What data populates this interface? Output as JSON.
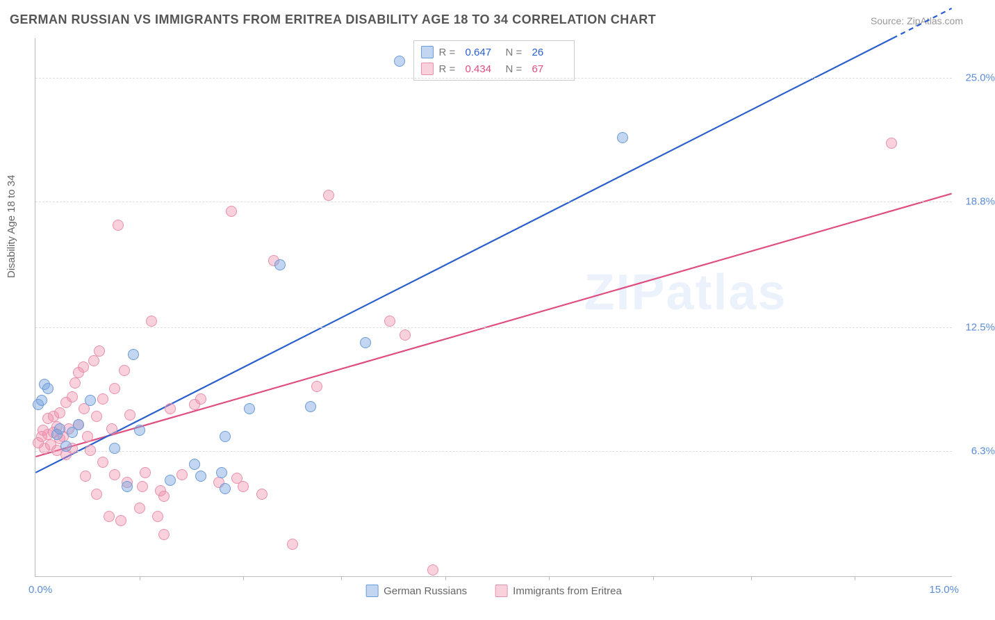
{
  "title": "GERMAN RUSSIAN VS IMMIGRANTS FROM ERITREA DISABILITY AGE 18 TO 34 CORRELATION CHART",
  "source": "Source: ZipAtlas.com",
  "ylabel": "Disability Age 18 to 34",
  "watermark": "ZIPatlas",
  "chart": {
    "type": "scatter+regression",
    "xlim": [
      0,
      15
    ],
    "ylim": [
      0,
      27
    ],
    "x_minmax_labels": [
      "0.0%",
      "15.0%"
    ],
    "ytick_values": [
      6.3,
      12.5,
      18.8,
      25.0
    ],
    "ytick_labels": [
      "6.3%",
      "12.5%",
      "18.8%",
      "25.0%"
    ],
    "xtick_marks": [
      1.7,
      3.4,
      5.0,
      6.7,
      8.4,
      10.1,
      11.7,
      13.4
    ],
    "background_color": "#ffffff",
    "grid_color": "#dddddd",
    "axis_color": "#bbbbbb",
    "tick_label_color": "#5b8dd6",
    "marker_radius": 8,
    "line_width": 2.2
  },
  "series": {
    "a": {
      "name": "German Russians",
      "fill": "rgba(120,165,225,0.45)",
      "stroke": "#6b9bd8",
      "line_color": "#2a5fce",
      "r_value": "0.647",
      "n_value": "26",
      "reg_y_at_x0": 5.2,
      "reg_y_at_xmax": 28.5,
      "points": [
        [
          0.05,
          8.6
        ],
        [
          0.1,
          8.8
        ],
        [
          0.15,
          9.6
        ],
        [
          0.2,
          9.4
        ],
        [
          0.35,
          7.1
        ],
        [
          0.4,
          7.4
        ],
        [
          0.5,
          6.5
        ],
        [
          0.6,
          7.2
        ],
        [
          0.7,
          7.6
        ],
        [
          0.9,
          8.8
        ],
        [
          1.3,
          6.4
        ],
        [
          1.5,
          4.5
        ],
        [
          1.7,
          7.3
        ],
        [
          1.6,
          11.1
        ],
        [
          2.2,
          4.8
        ],
        [
          2.6,
          5.6
        ],
        [
          2.7,
          5.0
        ],
        [
          3.05,
          5.2
        ],
        [
          3.1,
          4.4
        ],
        [
          3.1,
          7.0
        ],
        [
          3.5,
          8.4
        ],
        [
          4.0,
          15.6
        ],
        [
          4.5,
          8.5
        ],
        [
          5.4,
          11.7
        ],
        [
          5.95,
          25.8
        ],
        [
          9.6,
          22.0
        ]
      ]
    },
    "b": {
      "name": "Immigrants from Eritrea",
      "fill": "rgba(240,140,170,0.40)",
      "stroke": "#e890ab",
      "line_color": "#e04d80",
      "r_value": "0.434",
      "n_value": "67",
      "reg_y_at_x0": 6.0,
      "reg_y_at_xmax": 19.2,
      "points": [
        [
          0.05,
          6.7
        ],
        [
          0.1,
          7.0
        ],
        [
          0.12,
          7.3
        ],
        [
          0.15,
          6.4
        ],
        [
          0.2,
          7.1
        ],
        [
          0.2,
          7.9
        ],
        [
          0.25,
          6.6
        ],
        [
          0.3,
          7.2
        ],
        [
          0.3,
          8.0
        ],
        [
          0.35,
          6.3
        ],
        [
          0.35,
          7.5
        ],
        [
          0.4,
          6.9
        ],
        [
          0.4,
          8.2
        ],
        [
          0.45,
          7.0
        ],
        [
          0.5,
          6.1
        ],
        [
          0.5,
          8.7
        ],
        [
          0.55,
          7.4
        ],
        [
          0.6,
          9.0
        ],
        [
          0.6,
          6.4
        ],
        [
          0.65,
          9.7
        ],
        [
          0.7,
          7.6
        ],
        [
          0.7,
          10.2
        ],
        [
          0.78,
          10.5
        ],
        [
          0.8,
          8.4
        ],
        [
          0.82,
          5.0
        ],
        [
          0.85,
          7.0
        ],
        [
          0.9,
          6.3
        ],
        [
          0.95,
          10.8
        ],
        [
          1.0,
          8.0
        ],
        [
          1.0,
          4.1
        ],
        [
          1.05,
          11.3
        ],
        [
          1.1,
          5.7
        ],
        [
          1.1,
          8.9
        ],
        [
          1.2,
          3.0
        ],
        [
          1.25,
          7.4
        ],
        [
          1.3,
          9.4
        ],
        [
          1.3,
          5.1
        ],
        [
          1.35,
          17.6
        ],
        [
          1.4,
          2.8
        ],
        [
          1.45,
          10.3
        ],
        [
          1.5,
          4.7
        ],
        [
          1.55,
          8.1
        ],
        [
          1.7,
          3.4
        ],
        [
          1.75,
          4.5
        ],
        [
          1.8,
          5.2
        ],
        [
          1.9,
          12.8
        ],
        [
          2.0,
          3.0
        ],
        [
          2.05,
          4.3
        ],
        [
          2.1,
          4.0
        ],
        [
          2.1,
          2.1
        ],
        [
          2.2,
          8.4
        ],
        [
          2.4,
          5.1
        ],
        [
          2.6,
          8.6
        ],
        [
          2.7,
          8.9
        ],
        [
          3.0,
          4.7
        ],
        [
          3.2,
          18.3
        ],
        [
          3.3,
          4.9
        ],
        [
          3.4,
          4.5
        ],
        [
          3.7,
          4.1
        ],
        [
          3.9,
          15.8
        ],
        [
          4.2,
          1.6
        ],
        [
          4.6,
          9.5
        ],
        [
          4.8,
          19.1
        ],
        [
          5.8,
          12.8
        ],
        [
          6.05,
          12.1
        ],
        [
          6.5,
          0.3
        ],
        [
          14.0,
          21.7
        ]
      ]
    }
  },
  "legend_top": {
    "r_label": "R =",
    "n_label": "N ="
  }
}
